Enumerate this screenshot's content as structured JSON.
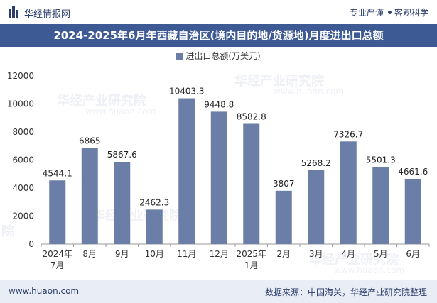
{
  "header": {
    "brand": "华经情报网",
    "tagline_1": "专业严谨",
    "tagline_2": "客观科学"
  },
  "colors": {
    "title_bg": "#3d5a94",
    "bar": "#6b7ea8",
    "footer_bg": "#e9edf5"
  },
  "watermark": {
    "text": "华经产业研究院",
    "url": "www.huaon.com",
    "short": "院"
  },
  "footer": {
    "website": "www.huaon.com",
    "source": "数据来源：中国海关，华经产业研究院整理"
  },
  "chart_data": {
    "type": "bar",
    "title": "2024-2025年6月年西藏自治区(境内目的地/货源地)月度进出口总额",
    "legend": "进出口总额(万美元)",
    "categories": [
      [
        "2024年",
        "7月"
      ],
      [
        "8月"
      ],
      [
        "9月"
      ],
      [
        "10月"
      ],
      [
        "11月"
      ],
      [
        "12月"
      ],
      [
        "2025年",
        "1月"
      ],
      [
        "2月"
      ],
      [
        "3月"
      ],
      [
        "4月"
      ],
      [
        "5月"
      ],
      [
        "6月"
      ]
    ],
    "values": [
      4544.1,
      6865,
      5867.6,
      2462.3,
      10403.3,
      9448.8,
      8582.8,
      3807,
      5268.2,
      7326.7,
      5501.3,
      4661.6
    ],
    "value_labels": [
      "4544.1",
      "6865",
      "5867.6",
      "2462.3",
      "10403.3",
      "9448.8",
      "8582.8",
      "3807",
      "5268.2",
      "7326.7",
      "5501.3",
      "4661.6"
    ],
    "ylim": [
      0,
      12000
    ],
    "yticks": [
      0,
      2000,
      4000,
      6000,
      8000,
      10000,
      12000
    ],
    "xlabel": "",
    "ylabel": "",
    "grid": false
  }
}
